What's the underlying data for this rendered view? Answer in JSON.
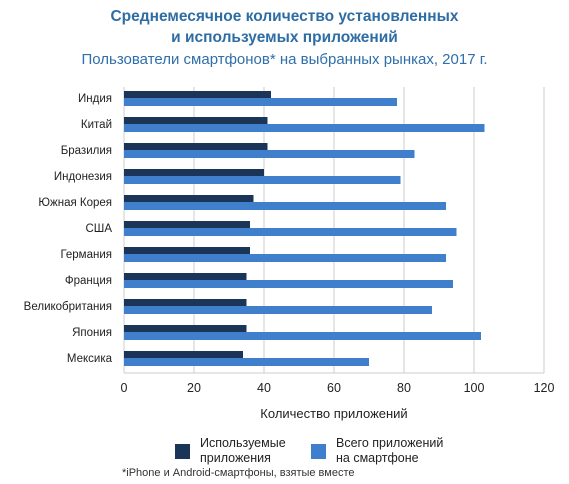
{
  "title_line1": "Среднемесячное количество установленных",
  "title_line2": "и используемых приложений",
  "subtitle": "Пользователи смартфонов* на выбранных рынках, 2017 г.",
  "footnote": "*iPhone и Android-смартфоны, взятые вместе",
  "legend": {
    "used": "Используемые\nприложения",
    "installed": "Всего приложений\nна смартфоне"
  },
  "colors": {
    "used": "#1b3558",
    "installed": "#3f7fcc",
    "grid": "#cccccc",
    "title": "#2e6da4"
  },
  "chart_data": {
    "type": "bar",
    "orientation": "horizontal",
    "categories": [
      "Индия",
      "Китай",
      "Бразилия",
      "Индонезия",
      "Южная Корея",
      "США",
      "Германия",
      "Франция",
      "Великобритания",
      "Япония",
      "Мексика"
    ],
    "series": [
      {
        "name": "Используемые приложения",
        "values": [
          42,
          41,
          41,
          40,
          37,
          36,
          36,
          35,
          35,
          35,
          34
        ]
      },
      {
        "name": "Всего приложений на смартфоне",
        "values": [
          78,
          103,
          83,
          79,
          92,
          95,
          92,
          94,
          88,
          102,
          70
        ]
      }
    ],
    "xlabel": "Количество приложений",
    "xlim": [
      0,
      120
    ],
    "xticks": [
      0,
      20,
      40,
      60,
      80,
      100,
      120
    ],
    "grid": "vertical",
    "legend": "bottom"
  }
}
